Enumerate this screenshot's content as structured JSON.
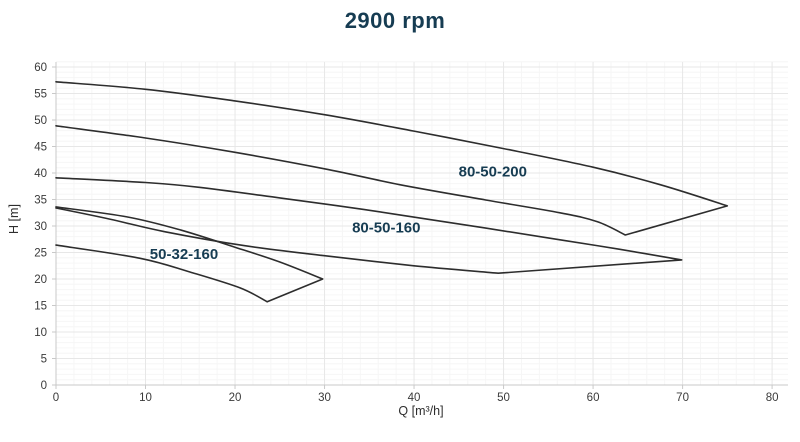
{
  "title": "2900 rpm",
  "colors": {
    "title_text": "#163c52",
    "curve_stroke": "#2d2d2d",
    "curve_label_text": "#163c52",
    "tick_text": "#3a3a3a",
    "grid_major": "#e7e7e7",
    "grid_minor": "#f6f6f6",
    "spine": "#c9c9c9"
  },
  "chart_data": {
    "type": "area",
    "title": "2900 rpm",
    "xlabel": "Q [m³/h]",
    "ylabel": "H [m]",
    "xlim": [
      0,
      81.5
    ],
    "ylim": [
      0,
      61
    ],
    "xticks": [
      0,
      10,
      20,
      30,
      40,
      50,
      60,
      70,
      80
    ],
    "yticks": [
      0,
      5,
      10,
      15,
      20,
      25,
      30,
      35,
      40,
      45,
      50,
      55,
      60
    ],
    "grid": {
      "major": true,
      "minor": true
    },
    "legend": "labels-on-chart",
    "series": [
      {
        "name": "80-50-200",
        "label": {
          "text": "80-50-200",
          "q": 48.8,
          "h": 40.3
        },
        "max_curve": [
          [
            0,
            57.2
          ],
          [
            10,
            55.8
          ],
          [
            20,
            53.6
          ],
          [
            30,
            51.0
          ],
          [
            40,
            47.9
          ],
          [
            50,
            44.6
          ],
          [
            60,
            41.1
          ],
          [
            67.5,
            37.8
          ],
          [
            75,
            33.8
          ]
        ],
        "min_curve": [
          [
            0,
            48.9
          ],
          [
            10,
            46.6
          ],
          [
            20,
            43.9
          ],
          [
            30,
            40.8
          ],
          [
            38.4,
            37.8
          ],
          [
            48,
            34.9
          ],
          [
            56.3,
            32.5
          ],
          [
            60.5,
            30.8
          ],
          [
            63.6,
            28.3
          ]
        ]
      },
      {
        "name": "80-50-160",
        "label": {
          "text": "80-50-160",
          "q": 36.9,
          "h": 29.7
        },
        "max_curve": [
          [
            0,
            39.1
          ],
          [
            10,
            38.2
          ],
          [
            16,
            37.3
          ],
          [
            25,
            35.3
          ],
          [
            32,
            33.7
          ],
          [
            38.4,
            32.1
          ],
          [
            48,
            29.6
          ],
          [
            56.3,
            27.4
          ],
          [
            63,
            25.6
          ],
          [
            69.9,
            23.6
          ]
        ],
        "min_curve": [
          [
            0,
            33.4
          ],
          [
            6,
            31.3
          ],
          [
            12.2,
            28.9
          ],
          [
            21,
            26.3
          ],
          [
            30,
            24.4
          ],
          [
            40,
            22.5
          ],
          [
            49.4,
            21.1
          ]
        ]
      },
      {
        "name": "50-32-160",
        "label": {
          "text": "50-32-160",
          "q": 14.3,
          "h": 24.7
        },
        "max_curve": [
          [
            0,
            33.6
          ],
          [
            8,
            31.7
          ],
          [
            14,
            29.2
          ],
          [
            20,
            26.0
          ],
          [
            25,
            23.2
          ],
          [
            29.8,
            20.0
          ]
        ],
        "min_curve": [
          [
            0,
            26.4
          ],
          [
            9.4,
            23.9
          ],
          [
            15,
            21.3
          ],
          [
            20.6,
            18.3
          ],
          [
            23.6,
            15.7
          ]
        ]
      }
    ]
  }
}
